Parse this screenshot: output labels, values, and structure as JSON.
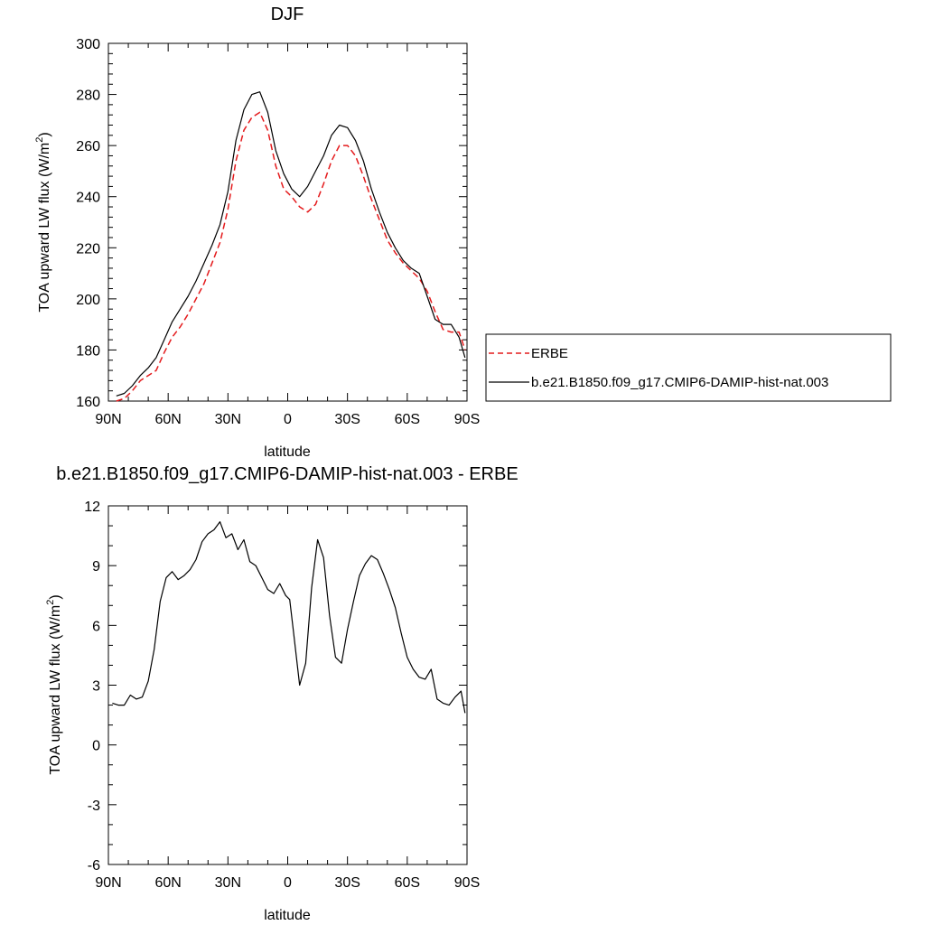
{
  "chart_data": [
    {
      "type": "line",
      "title": "DJF",
      "xlabel": "latitude",
      "ylabel": "TOA upward LW flux (W/m",
      "ylabel_sup": "2",
      "ylabel_end": ")",
      "xlim": [
        -90,
        90
      ],
      "ylim": [
        160,
        300
      ],
      "xticks": [
        -90,
        -60,
        -30,
        0,
        30,
        60,
        90
      ],
      "xtick_labels": [
        "90N",
        "60N",
        "30N",
        "0",
        "30S",
        "60S",
        "90S"
      ],
      "yticks": [
        160,
        180,
        200,
        220,
        240,
        260,
        280,
        300
      ],
      "ytick_labels": [
        "160",
        "180",
        "200",
        "220",
        "240",
        "260",
        "280",
        "300"
      ],
      "legend_position": "right",
      "grid": false,
      "series": [
        {
          "name": "ERBE",
          "color": "#e41a1c",
          "dash": "dashed",
          "x": [
            -86,
            -82,
            -78,
            -74,
            -70,
            -66,
            -62,
            -58,
            -54,
            -50,
            -46,
            -42,
            -38,
            -34,
            -30,
            -26,
            -22,
            -18,
            -14,
            -10,
            -6,
            -2,
            2,
            6,
            10,
            14,
            18,
            22,
            26,
            30,
            34,
            38,
            42,
            46,
            50,
            54,
            58,
            62,
            66,
            70,
            74,
            78,
            82,
            86,
            89
          ],
          "values": [
            160,
            161,
            164,
            168,
            170,
            172,
            179,
            185,
            189,
            194,
            200,
            206,
            214,
            222,
            235,
            254,
            266,
            271,
            273,
            266,
            252,
            243,
            240,
            236,
            234,
            237,
            245,
            254,
            260,
            260,
            256,
            248,
            239,
            231,
            223,
            218,
            214,
            211,
            208,
            203,
            195,
            188,
            187,
            187,
            180
          ]
        },
        {
          "name": "b.e21.B1850.f09_g17.CMIP6-DAMIP-hist-nat.003",
          "color": "#000000",
          "dash": "solid",
          "x": [
            -86,
            -82,
            -78,
            -74,
            -70,
            -66,
            -62,
            -58,
            -54,
            -50,
            -46,
            -42,
            -38,
            -34,
            -30,
            -26,
            -22,
            -18,
            -14,
            -10,
            -6,
            -2,
            2,
            6,
            10,
            14,
            18,
            22,
            26,
            30,
            34,
            38,
            42,
            46,
            50,
            54,
            58,
            62,
            66,
            70,
            74,
            78,
            82,
            86,
            89
          ],
          "values": [
            162,
            163,
            166,
            170,
            173,
            177,
            184,
            191,
            196,
            201,
            207,
            214,
            221,
            229,
            242,
            262,
            274,
            280,
            281,
            273,
            258,
            249,
            243,
            240,
            244,
            250,
            256,
            264,
            268,
            267,
            262,
            254,
            243,
            234,
            226,
            220,
            215,
            212,
            210,
            201,
            192,
            190,
            190,
            185,
            177
          ]
        }
      ]
    },
    {
      "type": "line",
      "title": "b.e21.B1850.f09_g17.CMIP6-DAMIP-hist-nat.003 - ERBE",
      "xlabel": "latitude",
      "ylabel": "TOA upward LW flux (W/m",
      "ylabel_sup": "2",
      "ylabel_end": ")",
      "xlim": [
        -90,
        90
      ],
      "ylim": [
        -6,
        12
      ],
      "xticks": [
        -90,
        -60,
        -30,
        0,
        30,
        60,
        90
      ],
      "xtick_labels": [
        "90N",
        "60N",
        "30N",
        "0",
        "30S",
        "60S",
        "90S"
      ],
      "yticks": [
        -6,
        -3,
        0,
        3,
        6,
        9,
        12
      ],
      "ytick_labels": [
        "-6",
        "-3",
        "0",
        "3",
        "6",
        "9",
        "12"
      ],
      "grid": false,
      "series": [
        {
          "color": "#000000",
          "dash": "solid",
          "x": [
            -88,
            -85,
            -82,
            -79,
            -76,
            -73,
            -70,
            -67,
            -64,
            -61,
            -58,
            -55,
            -52,
            -49,
            -46,
            -43,
            -40,
            -37,
            -34,
            -31,
            -28,
            -25,
            -22,
            -19,
            -16,
            -13,
            -10,
            -7,
            -4,
            -1,
            1,
            3,
            6,
            9,
            12,
            15,
            18,
            21,
            24,
            27,
            30,
            33,
            36,
            39,
            42,
            45,
            48,
            51,
            54,
            57,
            60,
            63,
            66,
            69,
            72,
            75,
            78,
            81,
            84,
            87,
            89
          ],
          "values": [
            2.1,
            2.0,
            2.0,
            2.5,
            2.3,
            2.4,
            3.2,
            4.8,
            7.2,
            8.4,
            8.7,
            8.3,
            8.5,
            8.8,
            9.3,
            10.2,
            10.6,
            10.8,
            11.2,
            10.4,
            10.6,
            9.8,
            10.3,
            9.2,
            9.0,
            8.4,
            7.8,
            7.6,
            8.1,
            7.5,
            7.3,
            5.6,
            3.0,
            4.1,
            7.9,
            10.3,
            9.4,
            6.5,
            4.4,
            4.1,
            5.8,
            7.2,
            8.5,
            9.1,
            9.5,
            9.3,
            8.6,
            7.8,
            6.9,
            5.6,
            4.4,
            3.8,
            3.4,
            3.3,
            3.8,
            2.3,
            2.1,
            2.0,
            2.4,
            2.7,
            1.6
          ]
        }
      ]
    }
  ]
}
